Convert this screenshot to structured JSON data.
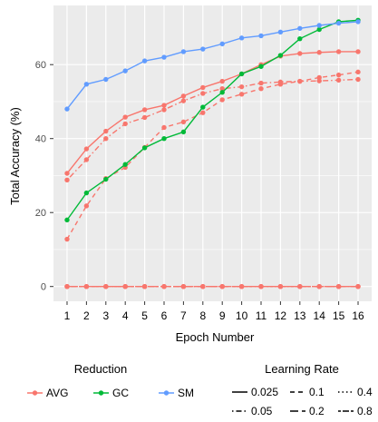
{
  "chart_data": {
    "type": "line",
    "xlabel": "Epoch Number",
    "ylabel": "Total Accuracy (%)",
    "x": [
      1,
      2,
      3,
      4,
      5,
      6,
      7,
      8,
      9,
      10,
      11,
      12,
      13,
      14,
      15,
      16
    ],
    "x_ticks": [
      "1",
      "2",
      "3",
      "4",
      "5",
      "6",
      "7",
      "8",
      "9",
      "10",
      "11",
      "12",
      "13",
      "14",
      "15",
      "16"
    ],
    "xlim": [
      0.3,
      16.7
    ],
    "ylim": [
      -4,
      76
    ],
    "y_ticks": [
      0,
      20,
      40,
      60
    ],
    "y_tick_labels": [
      "0",
      "20",
      "40",
      "60"
    ],
    "grid": true,
    "legend_position": "bottom",
    "legend_reduction": {
      "title": "Reduction",
      "items": [
        {
          "label": "AVG",
          "color": "#F8766D"
        },
        {
          "label": "GC",
          "color": "#00BA38"
        },
        {
          "label": "SM",
          "color": "#619CFF"
        }
      ]
    },
    "legend_lr": {
      "title": "Learning Rate",
      "items": [
        {
          "label": "0.025",
          "dash": "solid"
        },
        {
          "label": "0.1",
          "dash": "dashed"
        },
        {
          "label": "0.4",
          "dash": "dotted"
        },
        {
          "label": "0.05",
          "dash": "dotdash"
        },
        {
          "label": "0.2",
          "dash": "longdash"
        },
        {
          "label": "0.8",
          "dash": "twodash"
        }
      ]
    },
    "series": [
      {
        "reduction": "SM",
        "lr": "0.025",
        "color": "#619CFF",
        "dash": "solid",
        "values": [
          48,
          54.7,
          56,
          58.3,
          61,
          62,
          63.5,
          64.2,
          65.6,
          67.2,
          67.8,
          68.8,
          69.8,
          70.6,
          71.2,
          71.6
        ]
      },
      {
        "reduction": "GC",
        "lr": "0.025",
        "color": "#00BA38",
        "dash": "solid",
        "values": [
          18,
          25.3,
          29,
          33,
          37.5,
          40,
          41.8,
          48.5,
          52.5,
          57.5,
          59.5,
          62.5,
          67,
          69.5,
          71.6,
          72
        ]
      },
      {
        "reduction": "AVG",
        "lr": "0.025",
        "color": "#F8766D",
        "dash": "solid",
        "values": [
          30.6,
          37.2,
          42,
          45.8,
          47.8,
          49,
          51.5,
          53.8,
          55.5,
          57.5,
          60,
          62.3,
          63,
          63.3,
          63.5,
          63.5
        ]
      },
      {
        "reduction": "AVG",
        "lr": "0.05",
        "color": "#F8766D",
        "dash": "dotdash",
        "values": [
          28.8,
          34.3,
          40,
          44,
          45.7,
          47.8,
          50.2,
          52.2,
          53.5,
          54,
          55,
          55.3,
          55.5,
          55.6,
          55.8,
          56
        ]
      },
      {
        "reduction": "AVG",
        "lr": "0.1",
        "color": "#F8766D",
        "dash": "dashed",
        "values": [
          12.8,
          21.8,
          29.2,
          32.2,
          37.6,
          43,
          44.5,
          47,
          50.5,
          52,
          53.5,
          54.7,
          55.5,
          56.5,
          57.2,
          58
        ]
      },
      {
        "reduction": "AVG",
        "lr": "0.2",
        "color": "#F8766D",
        "dash": "longdash",
        "values": [
          0,
          0,
          0,
          0,
          0,
          0,
          0,
          0,
          0,
          0,
          0,
          0,
          0,
          0,
          0,
          0
        ]
      },
      {
        "reduction": "AVG",
        "lr": "0.4",
        "color": "#F8766D",
        "dash": "dotted",
        "values": [
          0,
          0,
          0,
          0,
          0,
          0,
          0,
          0,
          0,
          0,
          0,
          0,
          0,
          0,
          0,
          0
        ]
      },
      {
        "reduction": "AVG",
        "lr": "0.8",
        "color": "#F8766D",
        "dash": "twodash",
        "values": [
          0,
          0,
          0,
          0,
          0,
          0,
          0,
          0,
          0,
          0,
          0,
          0,
          0,
          0,
          0,
          0
        ]
      }
    ]
  }
}
